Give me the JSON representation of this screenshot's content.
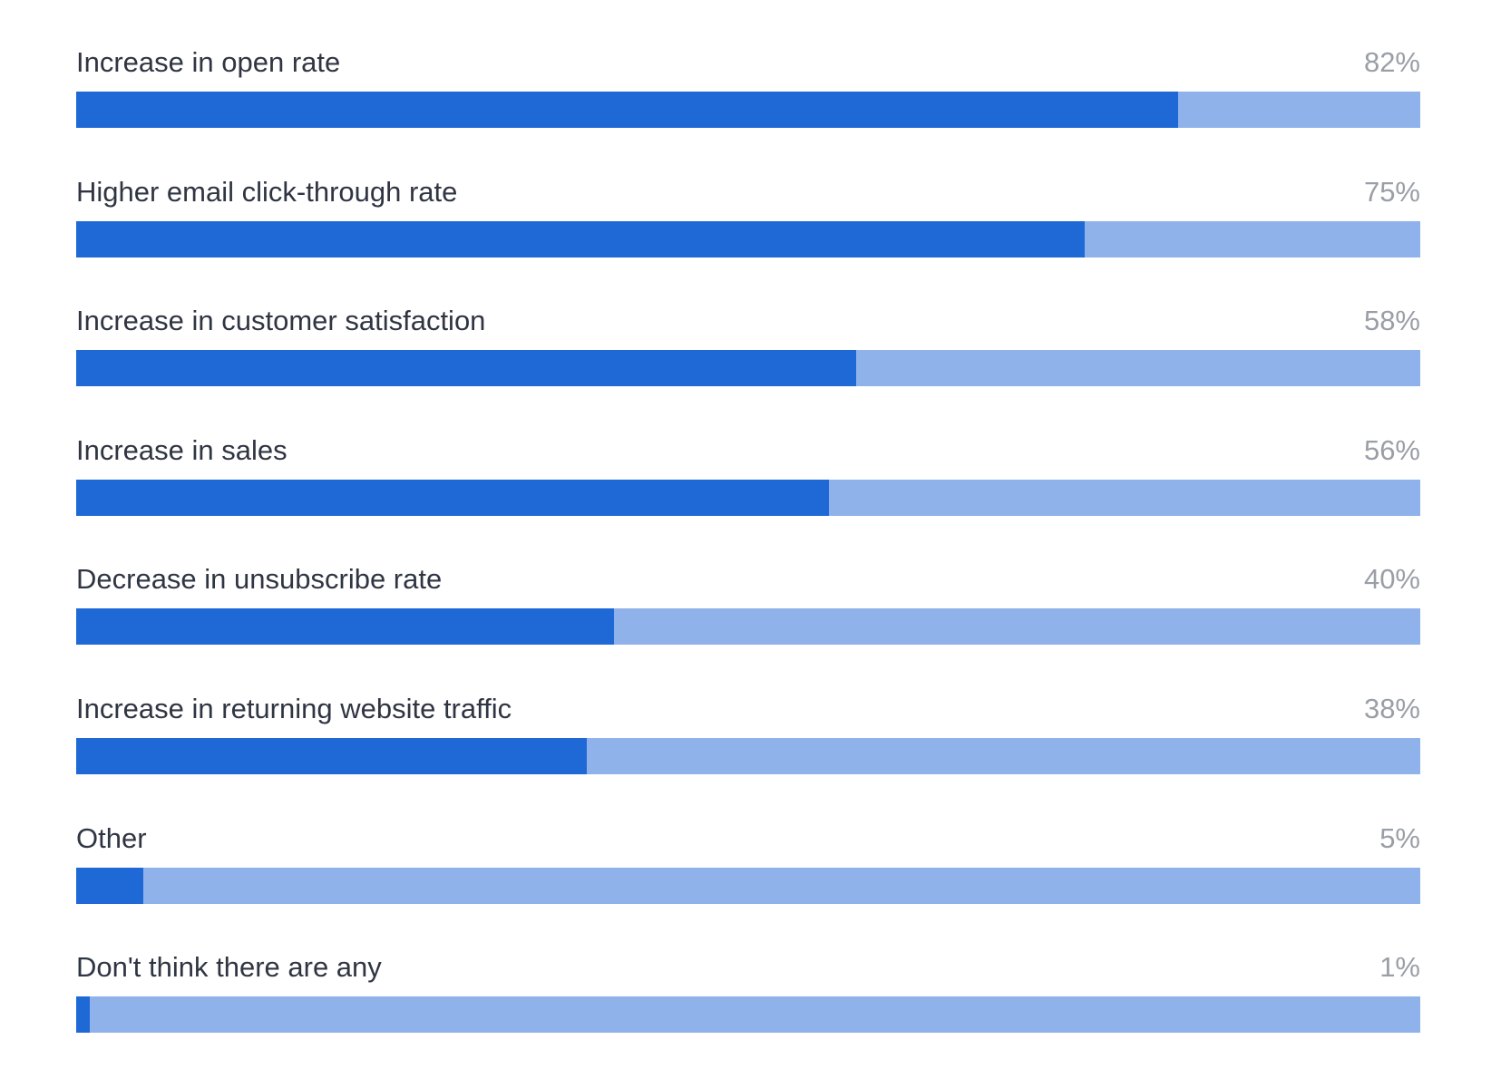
{
  "chart_data": {
    "type": "bar",
    "orientation": "horizontal",
    "categories": [
      "Increase in open rate",
      "Higher email click-through rate",
      "Increase in customer satisfaction",
      "Increase in sales",
      "Decrease in unsubscribe rate",
      "Increase in returning website traffic",
      "Other",
      "Don't think there are any"
    ],
    "values": [
      82,
      75,
      58,
      56,
      40,
      38,
      5,
      1
    ],
    "value_labels": [
      "82%",
      "75%",
      "58%",
      "56%",
      "40%",
      "38%",
      "5%",
      "1%"
    ],
    "xlim": [
      0,
      100
    ],
    "grid": false,
    "legend": "none",
    "colors": {
      "fill": "#1f69d6",
      "track": "#8fb2ea",
      "label": "#2f3542",
      "value": "#9a9ea6"
    }
  }
}
